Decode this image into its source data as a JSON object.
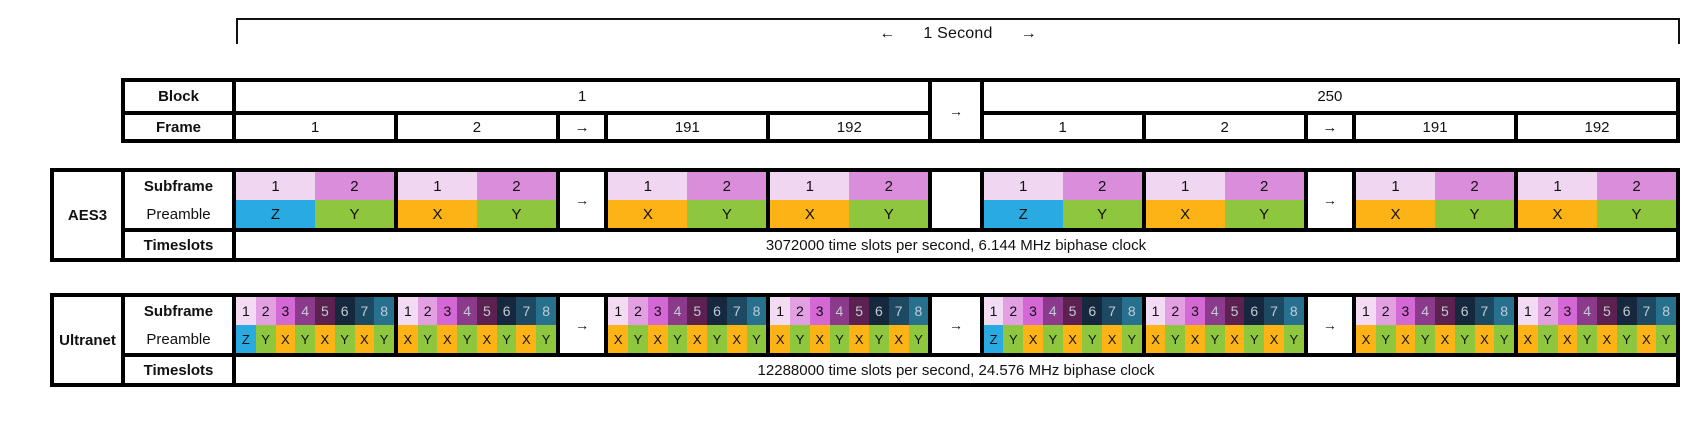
{
  "header": {
    "arrow_left": "←",
    "label": "1 Second",
    "arrow_right": "→"
  },
  "arrow_glyph": "→",
  "block_table": {
    "row_labels": {
      "block": "Block",
      "frame": "Frame"
    },
    "blocks": [
      {
        "label": "1",
        "frames": [
          "1",
          "2",
          "→",
          "191",
          "192"
        ]
      },
      {
        "label": "250",
        "frames": [
          "1",
          "2",
          "→",
          "191",
          "192"
        ]
      }
    ],
    "inter_block_arrow": "→"
  },
  "aes3": {
    "title": "AES3",
    "labels": {
      "subframe": "Subframe",
      "preamble": "Preamble",
      "timeslots": "Timeslots"
    },
    "subframe_numbers": [
      "1",
      "2"
    ],
    "sequence": [
      {
        "type": "frame",
        "preambles": [
          "Z",
          "Y"
        ]
      },
      {
        "type": "frame",
        "preambles": [
          "X",
          "Y"
        ]
      },
      {
        "type": "arrow"
      },
      {
        "type": "frame",
        "preambles": [
          "X",
          "Y"
        ]
      },
      {
        "type": "frame",
        "preambles": [
          "X",
          "Y"
        ]
      },
      {
        "type": "gap",
        "label": ""
      },
      {
        "type": "frame",
        "preambles": [
          "Z",
          "Y"
        ]
      },
      {
        "type": "frame",
        "preambles": [
          "X",
          "Y"
        ]
      },
      {
        "type": "arrow"
      },
      {
        "type": "frame",
        "preambles": [
          "X",
          "Y"
        ]
      },
      {
        "type": "frame",
        "preambles": [
          "X",
          "Y"
        ]
      }
    ],
    "timeslots_text": "3072000 time slots per second,  6.144 MHz biphase clock"
  },
  "ultranet": {
    "title": "Ultranet",
    "labels": {
      "subframe": "Subframe",
      "preamble": "Preamble",
      "timeslots": "Timeslots"
    },
    "subframe_numbers": [
      "1",
      "2",
      "3",
      "4",
      "5",
      "6",
      "7",
      "8"
    ],
    "sequence": [
      {
        "type": "frame",
        "preambles": [
          "Z",
          "Y",
          "X",
          "Y",
          "X",
          "Y",
          "X",
          "Y"
        ]
      },
      {
        "type": "frame",
        "preambles": [
          "X",
          "Y",
          "X",
          "Y",
          "X",
          "Y",
          "X",
          "Y"
        ]
      },
      {
        "type": "arrow"
      },
      {
        "type": "frame",
        "preambles": [
          "X",
          "Y",
          "X",
          "Y",
          "X",
          "Y",
          "X",
          "Y"
        ]
      },
      {
        "type": "frame",
        "preambles": [
          "X",
          "Y",
          "X",
          "Y",
          "X",
          "Y",
          "X",
          "Y"
        ]
      },
      {
        "type": "gap",
        "label": "→"
      },
      {
        "type": "frame",
        "preambles": [
          "Z",
          "Y",
          "X",
          "Y",
          "X",
          "Y",
          "X",
          "Y"
        ]
      },
      {
        "type": "frame",
        "preambles": [
          "X",
          "Y",
          "X",
          "Y",
          "X",
          "Y",
          "X",
          "Y"
        ]
      },
      {
        "type": "arrow"
      },
      {
        "type": "frame",
        "preambles": [
          "X",
          "Y",
          "X",
          "Y",
          "X",
          "Y",
          "X",
          "Y"
        ]
      },
      {
        "type": "frame",
        "preambles": [
          "X",
          "Y",
          "X",
          "Y",
          "X",
          "Y",
          "X",
          "Y"
        ]
      }
    ],
    "timeslots_text": "12288000 time slots per second,  24.576 MHz biphase clock"
  },
  "colors": {
    "preambles": {
      "Z": "#29abe2",
      "Y": "#8ec73e",
      "X": "#fcb315"
    },
    "aes3_subframe_fills": [
      "#f1d6f1",
      "#da8dda"
    ],
    "aes3_subframe_text": [
      "#111111",
      "#111111"
    ],
    "ultranet_subframe_fills": [
      "#f3dbf3",
      "#e2a0e2",
      "#d468d4",
      "#8c3a8c",
      "#5c2150",
      "#15283e",
      "#1d4a62",
      "#27718f"
    ],
    "ultranet_subframe_text": [
      "#111111",
      "#111111",
      "#111111",
      "#c2cbd4",
      "#c2cbd4",
      "#c2cbd4",
      "#c2cbd4",
      "#c2cbd4"
    ]
  }
}
